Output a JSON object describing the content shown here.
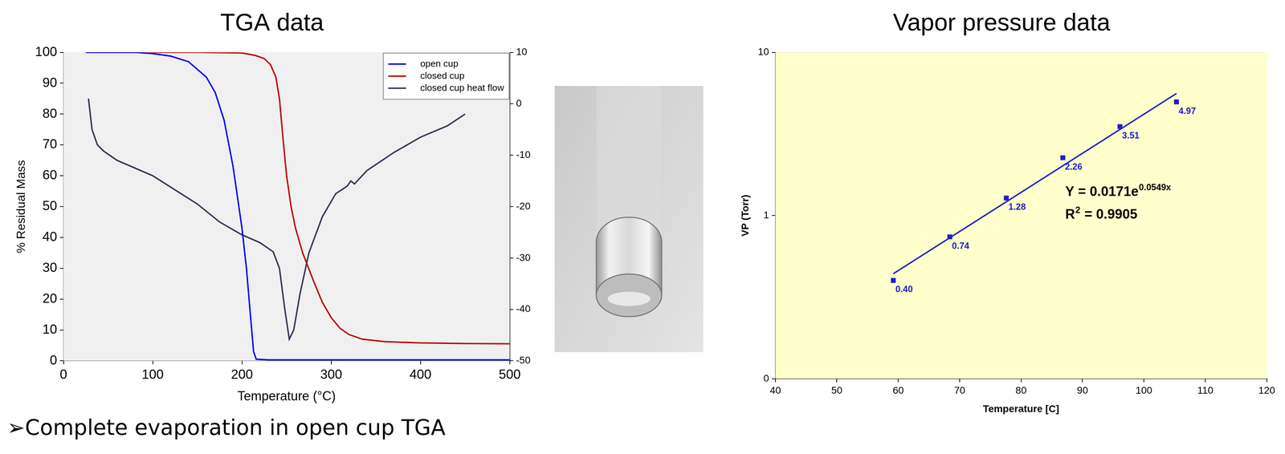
{
  "chart_data": [
    {
      "type": "line",
      "title": "TGA data",
      "xlabel": "Temperature (°C)",
      "ylabel": "% Residual Mass",
      "xlim": [
        0,
        500
      ],
      "xticks": [
        0,
        100,
        200,
        300,
        400,
        500
      ],
      "ylim": [
        0,
        100
      ],
      "yticks": [
        0,
        10,
        20,
        30,
        40,
        50,
        60,
        70,
        80,
        90,
        100
      ],
      "y2lim": [
        -50,
        10
      ],
      "y2ticks": [
        -50,
        -40,
        -30,
        -20,
        -10,
        0,
        10
      ],
      "grid": "x",
      "legend": "upper right",
      "series": [
        {
          "name": "open cup",
          "color": "#0000ff",
          "x": [
            25,
            80,
            100,
            120,
            140,
            160,
            170,
            180,
            190,
            200,
            205,
            210,
            213,
            216,
            230,
            300,
            400,
            500
          ],
          "values": [
            100,
            100,
            99.6,
            98.8,
            97,
            92,
            87,
            78,
            63,
            43,
            30,
            13,
            3,
            0.5,
            0.3,
            0.3,
            0.3,
            0.3
          ]
        },
        {
          "name": "closed cup",
          "color": "#c00000",
          "x": [
            25,
            100,
            150,
            200,
            215,
            225,
            232,
            238,
            242,
            246,
            250,
            255,
            260,
            268,
            280,
            290,
            300,
            310,
            320,
            335,
            360,
            400,
            450,
            500
          ],
          "values": [
            100,
            100,
            100,
            99.8,
            99,
            98,
            96,
            92,
            85,
            72,
            60,
            50,
            43,
            35,
            26,
            19,
            14,
            10.5,
            8.5,
            7,
            6.2,
            5.8,
            5.6,
            5.5
          ]
        },
        {
          "name": "closed cup heat flow",
          "color": "#333355",
          "axis": "y2",
          "x": [
            28,
            32,
            38,
            45,
            60,
            100,
            150,
            175,
            200,
            220,
            235,
            242,
            248,
            253,
            258,
            265,
            275,
            290,
            305,
            318,
            322,
            326,
            340,
            370,
            400,
            430,
            450
          ],
          "values": [
            1,
            -5,
            -8,
            -9.2,
            -11,
            -14,
            -19.5,
            -23,
            -25.5,
            -27,
            -28.8,
            -32,
            -40,
            -45.8,
            -44,
            -37,
            -29,
            -22,
            -17.5,
            -16,
            -15,
            -15.6,
            -13,
            -9.5,
            -6.5,
            -4.3,
            -2
          ]
        }
      ]
    },
    {
      "type": "scatter",
      "title": "Vapor pressure data",
      "xlabel": "Temperature [C]",
      "ylabel": "VP (Torr)",
      "log": "y",
      "grid": "y",
      "xlim": [
        40,
        120
      ],
      "xticks": [
        40,
        50,
        60,
        70,
        80,
        90,
        100,
        110,
        120
      ],
      "ylim": [
        0.1,
        10
      ],
      "yticks": [
        {
          "value": 0.1,
          "label": "0"
        },
        1,
        10
      ],
      "annotations": [
        {
          "text": "Y = 0.0171e",
          "superscript": "0.0549x"
        },
        {
          "text": "R",
          "superscript": "2",
          "suffix": " = 0.9905"
        }
      ],
      "series": [
        {
          "type": "scatter",
          "color": "#1f1fc8",
          "marker": "square",
          "data_labels": true,
          "x": [
            59.2,
            68.4,
            77.6,
            86.8,
            96.1,
            105.3
          ],
          "values": [
            0.4,
            0.74,
            1.28,
            2.26,
            3.51,
            4.97
          ],
          "value_labels": [
            "0.40",
            "0.74",
            "1.28",
            "2.26",
            "3.51",
            "4.97"
          ]
        },
        {
          "type": "line",
          "color": "#1f1fc8",
          "marker": "none",
          "line_style": "solid",
          "x": [
            59.2,
            105.3
          ],
          "values": [
            0.44,
            5.6
          ]
        }
      ]
    }
  ],
  "bullets": [
    "➢Complete evaporation in open cup TGA"
  ]
}
